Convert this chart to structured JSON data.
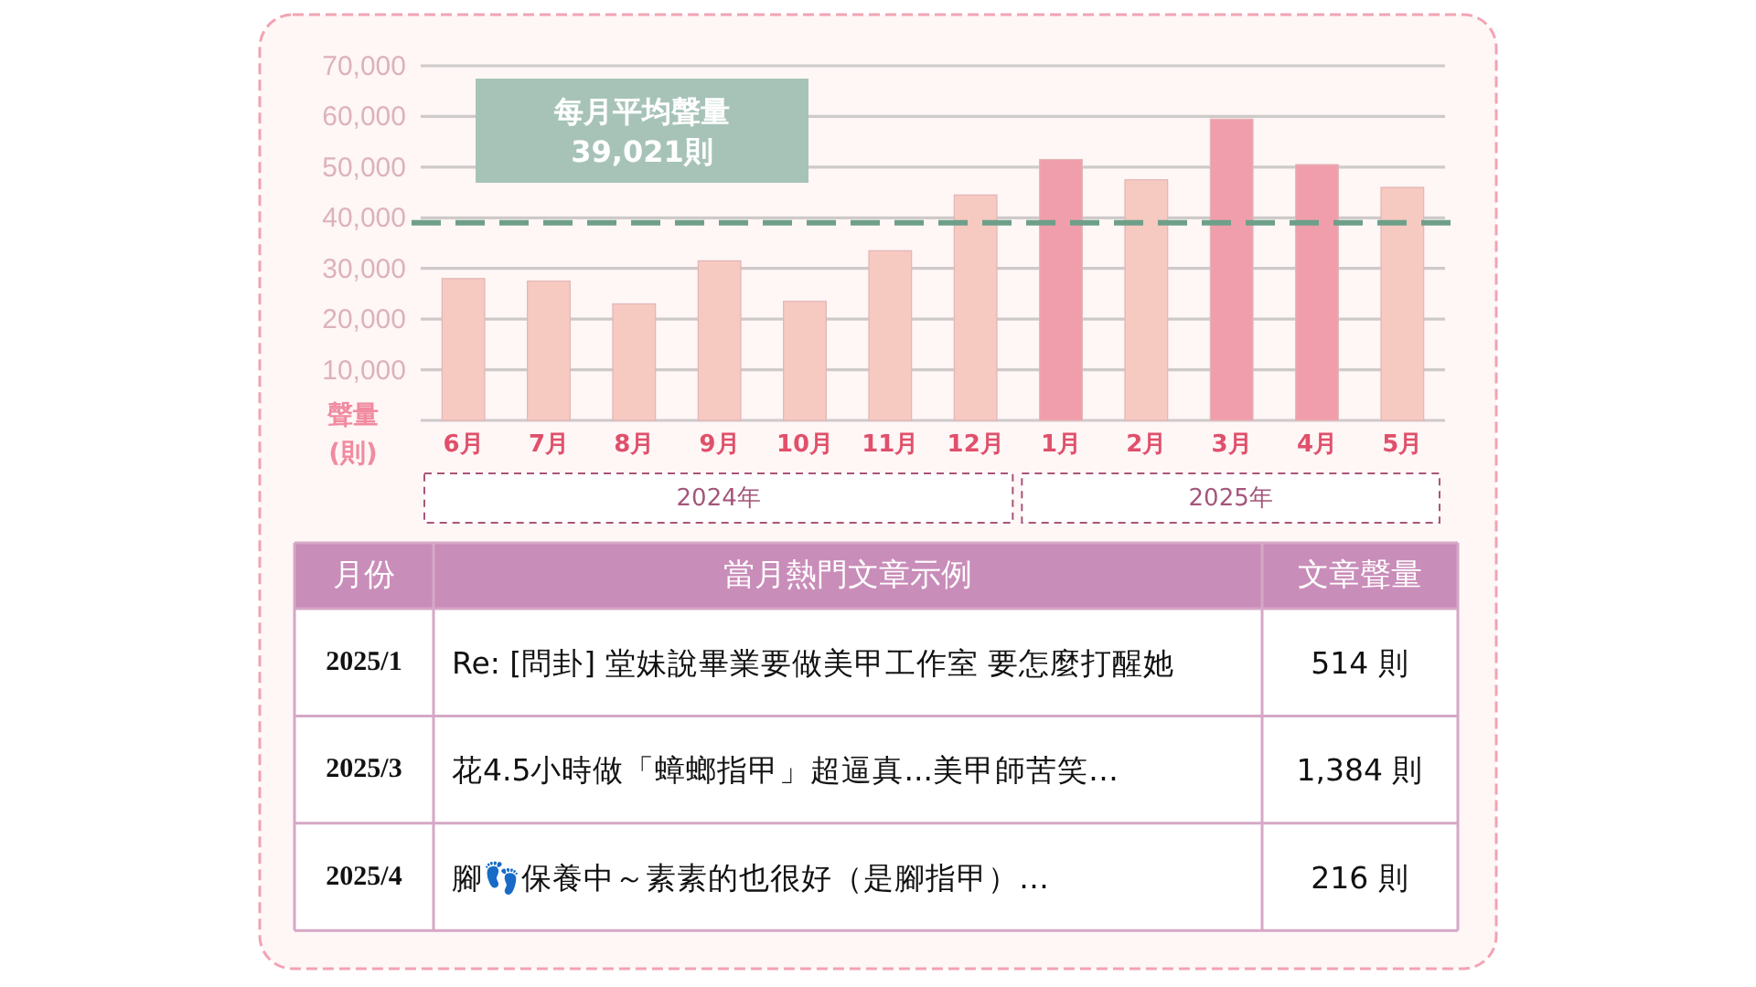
{
  "chart_data": [
    {
      "type": "bar",
      "categories": [
        "6月",
        "7月",
        "8月",
        "9月",
        "10月",
        "11月",
        "12月",
        "1月",
        "2月",
        "3月",
        "4月",
        "5月"
      ],
      "values": [
        28000,
        27500,
        23000,
        31500,
        23500,
        33500,
        44500,
        51500,
        47500,
        59500,
        50500,
        46000
      ],
      "colors": [
        "#f6c9c1",
        "#f6c9c1",
        "#f6c9c1",
        "#f6c9c1",
        "#f6c9c1",
        "#f6c9c1",
        "#f6c9c1",
        "#f09eac",
        "#f6c9c1",
        "#f09eac",
        "#f09eac",
        "#f6c9c1"
      ],
      "ylim": [
        0,
        70000
      ],
      "yticks": [
        {
          "value": 0,
          "label": null
        },
        {
          "value": 10000,
          "label": "10,000"
        },
        {
          "value": 20000,
          "label": "20,000"
        },
        {
          "value": 30000,
          "label": "30,000"
        },
        {
          "value": 40000,
          "label": "40,000"
        },
        {
          "value": 50000,
          "label": "50,000"
        },
        {
          "value": 60000,
          "label": "60,000"
        },
        {
          "value": 70000,
          "label": "70,000"
        }
      ],
      "ylabel": "聲量\n(則)",
      "grid": "y",
      "ref_lines": [
        {
          "axis": "y",
          "value": 39021,
          "label": "每月平均聲量\n39,021則",
          "color": "#6e9f89",
          "line_style": "dashed"
        }
      ],
      "annotations": [
        "2024年",
        "2025年"
      ]
    },
    {
      "type": "other",
      "annotations": [
        "月份",
        "當月熱門文章示例",
        "文章聲量",
        "2025/1",
        "Re: [問卦] 堂妹說畢業要做美甲工作室 要怎麼打醒她",
        "514 則",
        "2025/3",
        "花4.5小時做「蟑螂指甲」超逼真...美甲師苦笑…",
        "1,384 則",
        "2025/4",
        "腳👣保養中～素素的也很好（是腳指甲）…",
        "216 則"
      ]
    }
  ]
}
